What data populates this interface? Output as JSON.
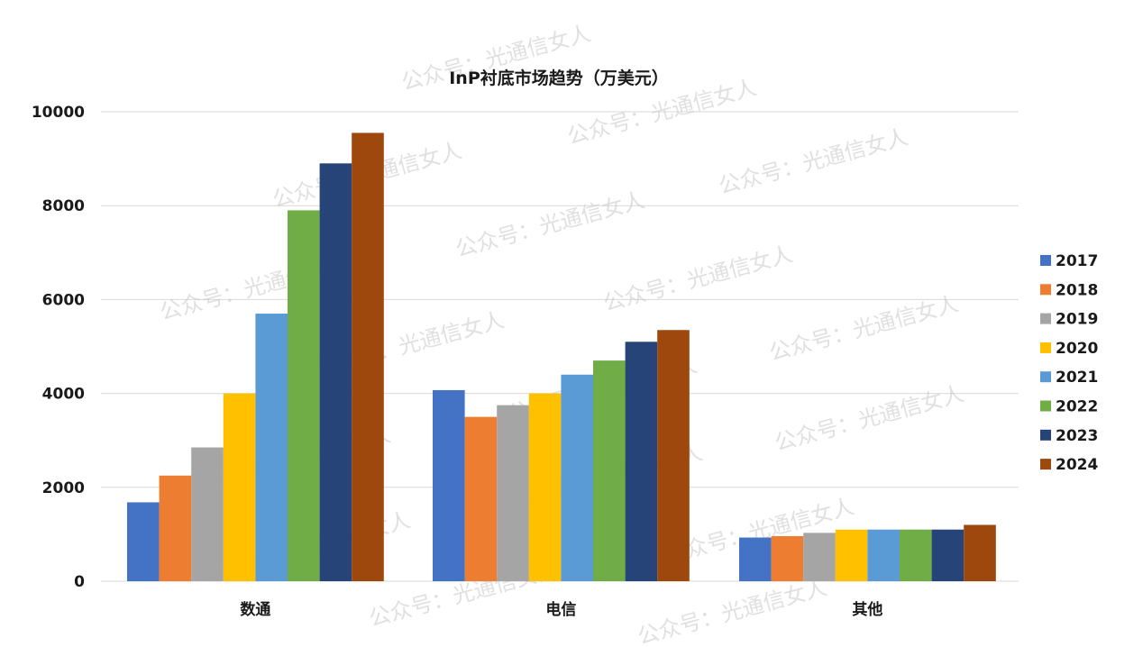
{
  "chart_data": {
    "type": "bar",
    "title": "InP衬底市场趋势（万美元）",
    "categories": [
      "数通",
      "电信",
      "其他"
    ],
    "series": [
      {
        "name": "2017",
        "color": "#4472C4",
        "values": [
          1680,
          4070,
          930
        ]
      },
      {
        "name": "2018",
        "color": "#ED7D31",
        "values": [
          2250,
          3500,
          960
        ]
      },
      {
        "name": "2019",
        "color": "#A5A5A5",
        "values": [
          2850,
          3750,
          1030
        ]
      },
      {
        "name": "2020",
        "color": "#FFC000",
        "values": [
          4000,
          4000,
          1100
        ]
      },
      {
        "name": "2021",
        "color": "#5B9BD5",
        "values": [
          5700,
          4400,
          1100
        ]
      },
      {
        "name": "2022",
        "color": "#70AD47",
        "values": [
          7900,
          4700,
          1100
        ]
      },
      {
        "name": "2023",
        "color": "#264478",
        "values": [
          8900,
          5100,
          1100
        ]
      },
      {
        "name": "2024",
        "color": "#9E480E",
        "values": [
          9550,
          5350,
          1200
        ]
      }
    ],
    "ylim": [
      0,
      10000
    ],
    "yticks": [
      "0",
      "2000",
      "4000",
      "6000",
      "8000",
      "10000"
    ],
    "grid": true,
    "legend": "right"
  },
  "watermark": {
    "text": "公众号：光通信女人"
  }
}
